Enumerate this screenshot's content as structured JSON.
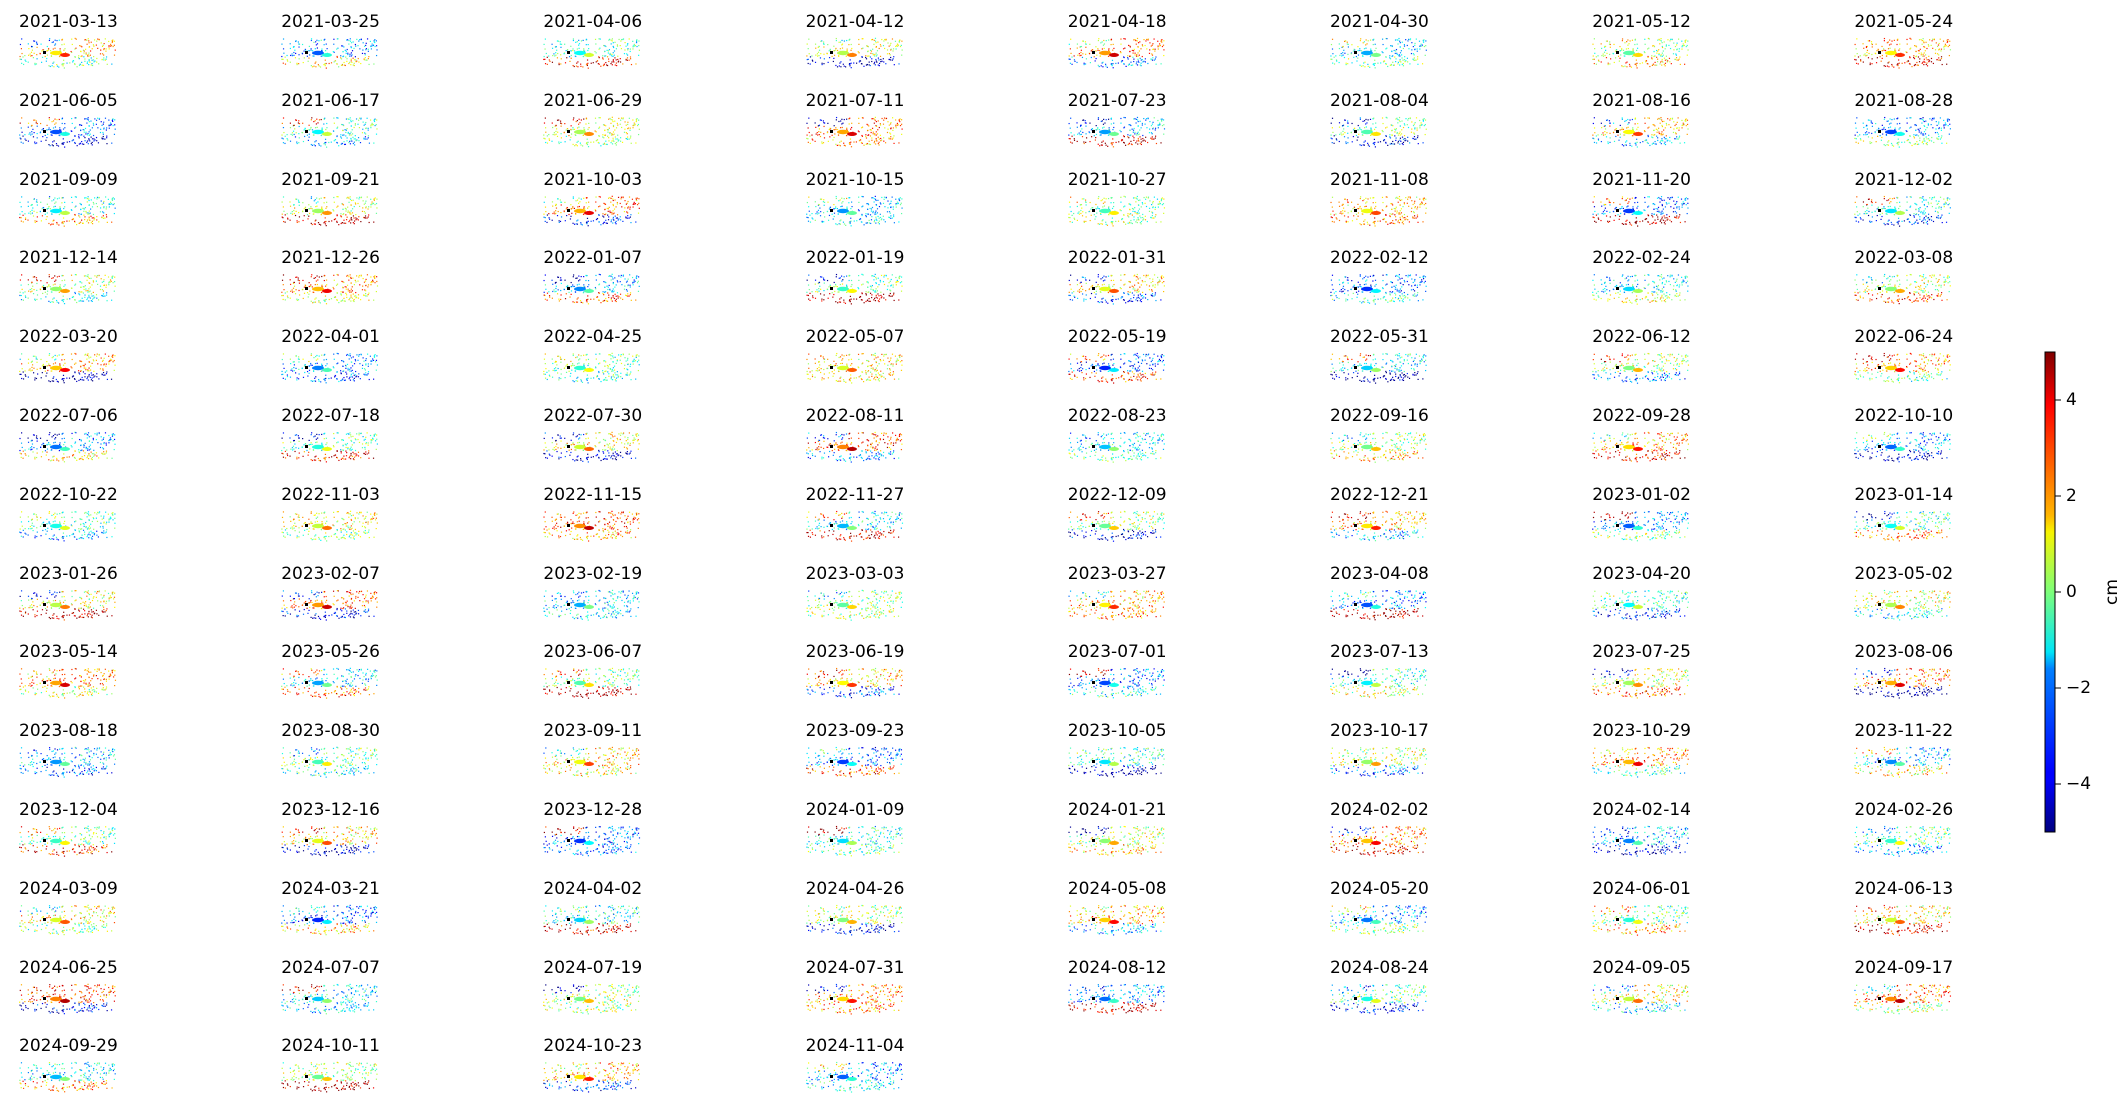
{
  "chart_data": {
    "type": "scatter",
    "description_type": "small-multiples displacement maps",
    "panels": [
      "2021-03-13",
      "2021-03-25",
      "2021-04-06",
      "2021-04-12",
      "2021-04-18",
      "2021-04-30",
      "2021-05-12",
      "2021-05-24",
      "2021-06-05",
      "2021-06-17",
      "2021-06-29",
      "2021-07-11",
      "2021-07-23",
      "2021-08-04",
      "2021-08-16",
      "2021-08-28",
      "2021-09-09",
      "2021-09-21",
      "2021-10-03",
      "2021-10-15",
      "2021-10-27",
      "2021-11-08",
      "2021-11-20",
      "2021-12-02",
      "2021-12-14",
      "2021-12-26",
      "2022-01-07",
      "2022-01-19",
      "2022-01-31",
      "2022-02-12",
      "2022-02-24",
      "2022-03-08",
      "2022-03-20",
      "2022-04-01",
      "2022-04-25",
      "2022-05-07",
      "2022-05-19",
      "2022-05-31",
      "2022-06-12",
      "2022-06-24",
      "2022-07-06",
      "2022-07-18",
      "2022-07-30",
      "2022-08-11",
      "2022-08-23",
      "2022-09-16",
      "2022-09-28",
      "2022-10-10",
      "2022-10-22",
      "2022-11-03",
      "2022-11-15",
      "2022-11-27",
      "2022-12-09",
      "2022-12-21",
      "2023-01-02",
      "2023-01-14",
      "2023-01-26",
      "2023-02-07",
      "2023-02-19",
      "2023-03-03",
      "2023-03-27",
      "2023-04-08",
      "2023-04-20",
      "2023-05-02",
      "2023-05-14",
      "2023-05-26",
      "2023-06-07",
      "2023-06-19",
      "2023-07-01",
      "2023-07-13",
      "2023-07-25",
      "2023-08-06",
      "2023-08-18",
      "2023-08-30",
      "2023-09-11",
      "2023-09-23",
      "2023-10-05",
      "2023-10-17",
      "2023-10-29",
      "2023-11-22",
      "2023-12-04",
      "2023-12-16",
      "2023-12-28",
      "2024-01-09",
      "2024-01-21",
      "2024-02-02",
      "2024-02-14",
      "2024-02-26",
      "2024-03-09",
      "2024-03-21",
      "2024-04-02",
      "2024-04-26",
      "2024-05-08",
      "2024-05-20",
      "2024-06-01",
      "2024-06-13",
      "2024-06-25",
      "2024-07-07",
      "2024-07-19",
      "2024-07-31",
      "2024-08-12",
      "2024-08-24",
      "2024-09-05",
      "2024-09-17",
      "2024-09-29",
      "2024-10-11",
      "2024-10-23",
      "2024-11-04"
    ],
    "grid_columns": 8,
    "axes_visible": false,
    "colormap": "jet",
    "colorbar": {
      "label": "cm",
      "range": [
        -5,
        5
      ],
      "ticks": [
        4,
        2,
        0,
        -2,
        -4
      ],
      "tick_labels": [
        "4",
        "2",
        "0",
        "−2",
        "−4"
      ]
    },
    "colors": {
      "reference_point": "#000000"
    }
  }
}
